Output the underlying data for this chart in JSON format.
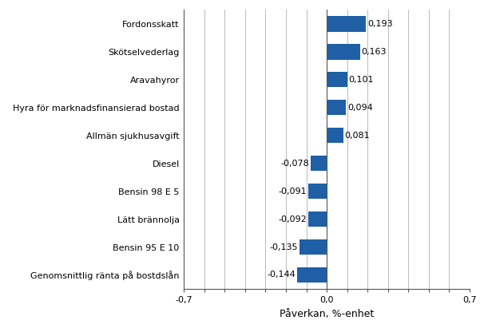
{
  "categories": [
    "Genomsnittlig ränta på bostdslån",
    "Bensin 95 E 10",
    "Lätt brännolja",
    "Bensin 98 E 5",
    "Diesel",
    "Allmän sjukhusavgift",
    "Hyra för marknadsfinansierad bostad",
    "Aravahyror",
    "Skötselvederlag",
    "Fordonsskatt"
  ],
  "values": [
    -0.144,
    -0.135,
    -0.092,
    -0.091,
    -0.078,
    0.081,
    0.094,
    0.101,
    0.163,
    0.193
  ],
  "bar_color": "#1F5FA6",
  "xlabel": "Påverkan, %-enhet",
  "xlim": [
    -0.7,
    0.7
  ],
  "xticks": [
    -0.7,
    -0.6,
    -0.5,
    -0.4,
    -0.3,
    -0.2,
    -0.1,
    0.0,
    0.1,
    0.2,
    0.3,
    0.4,
    0.5,
    0.6,
    0.7
  ],
  "xtick_labels": [
    "-0,7",
    "",
    "",
    "",
    "",
    "",
    "",
    "0,0",
    "",
    "",
    "",
    "",
    "",
    "",
    "0,7"
  ],
  "background_color": "#ffffff",
  "grid_color": "#b0b0b0",
  "bar_height": 0.55,
  "label_fontsize": 8.0,
  "xlabel_fontsize": 9.0
}
